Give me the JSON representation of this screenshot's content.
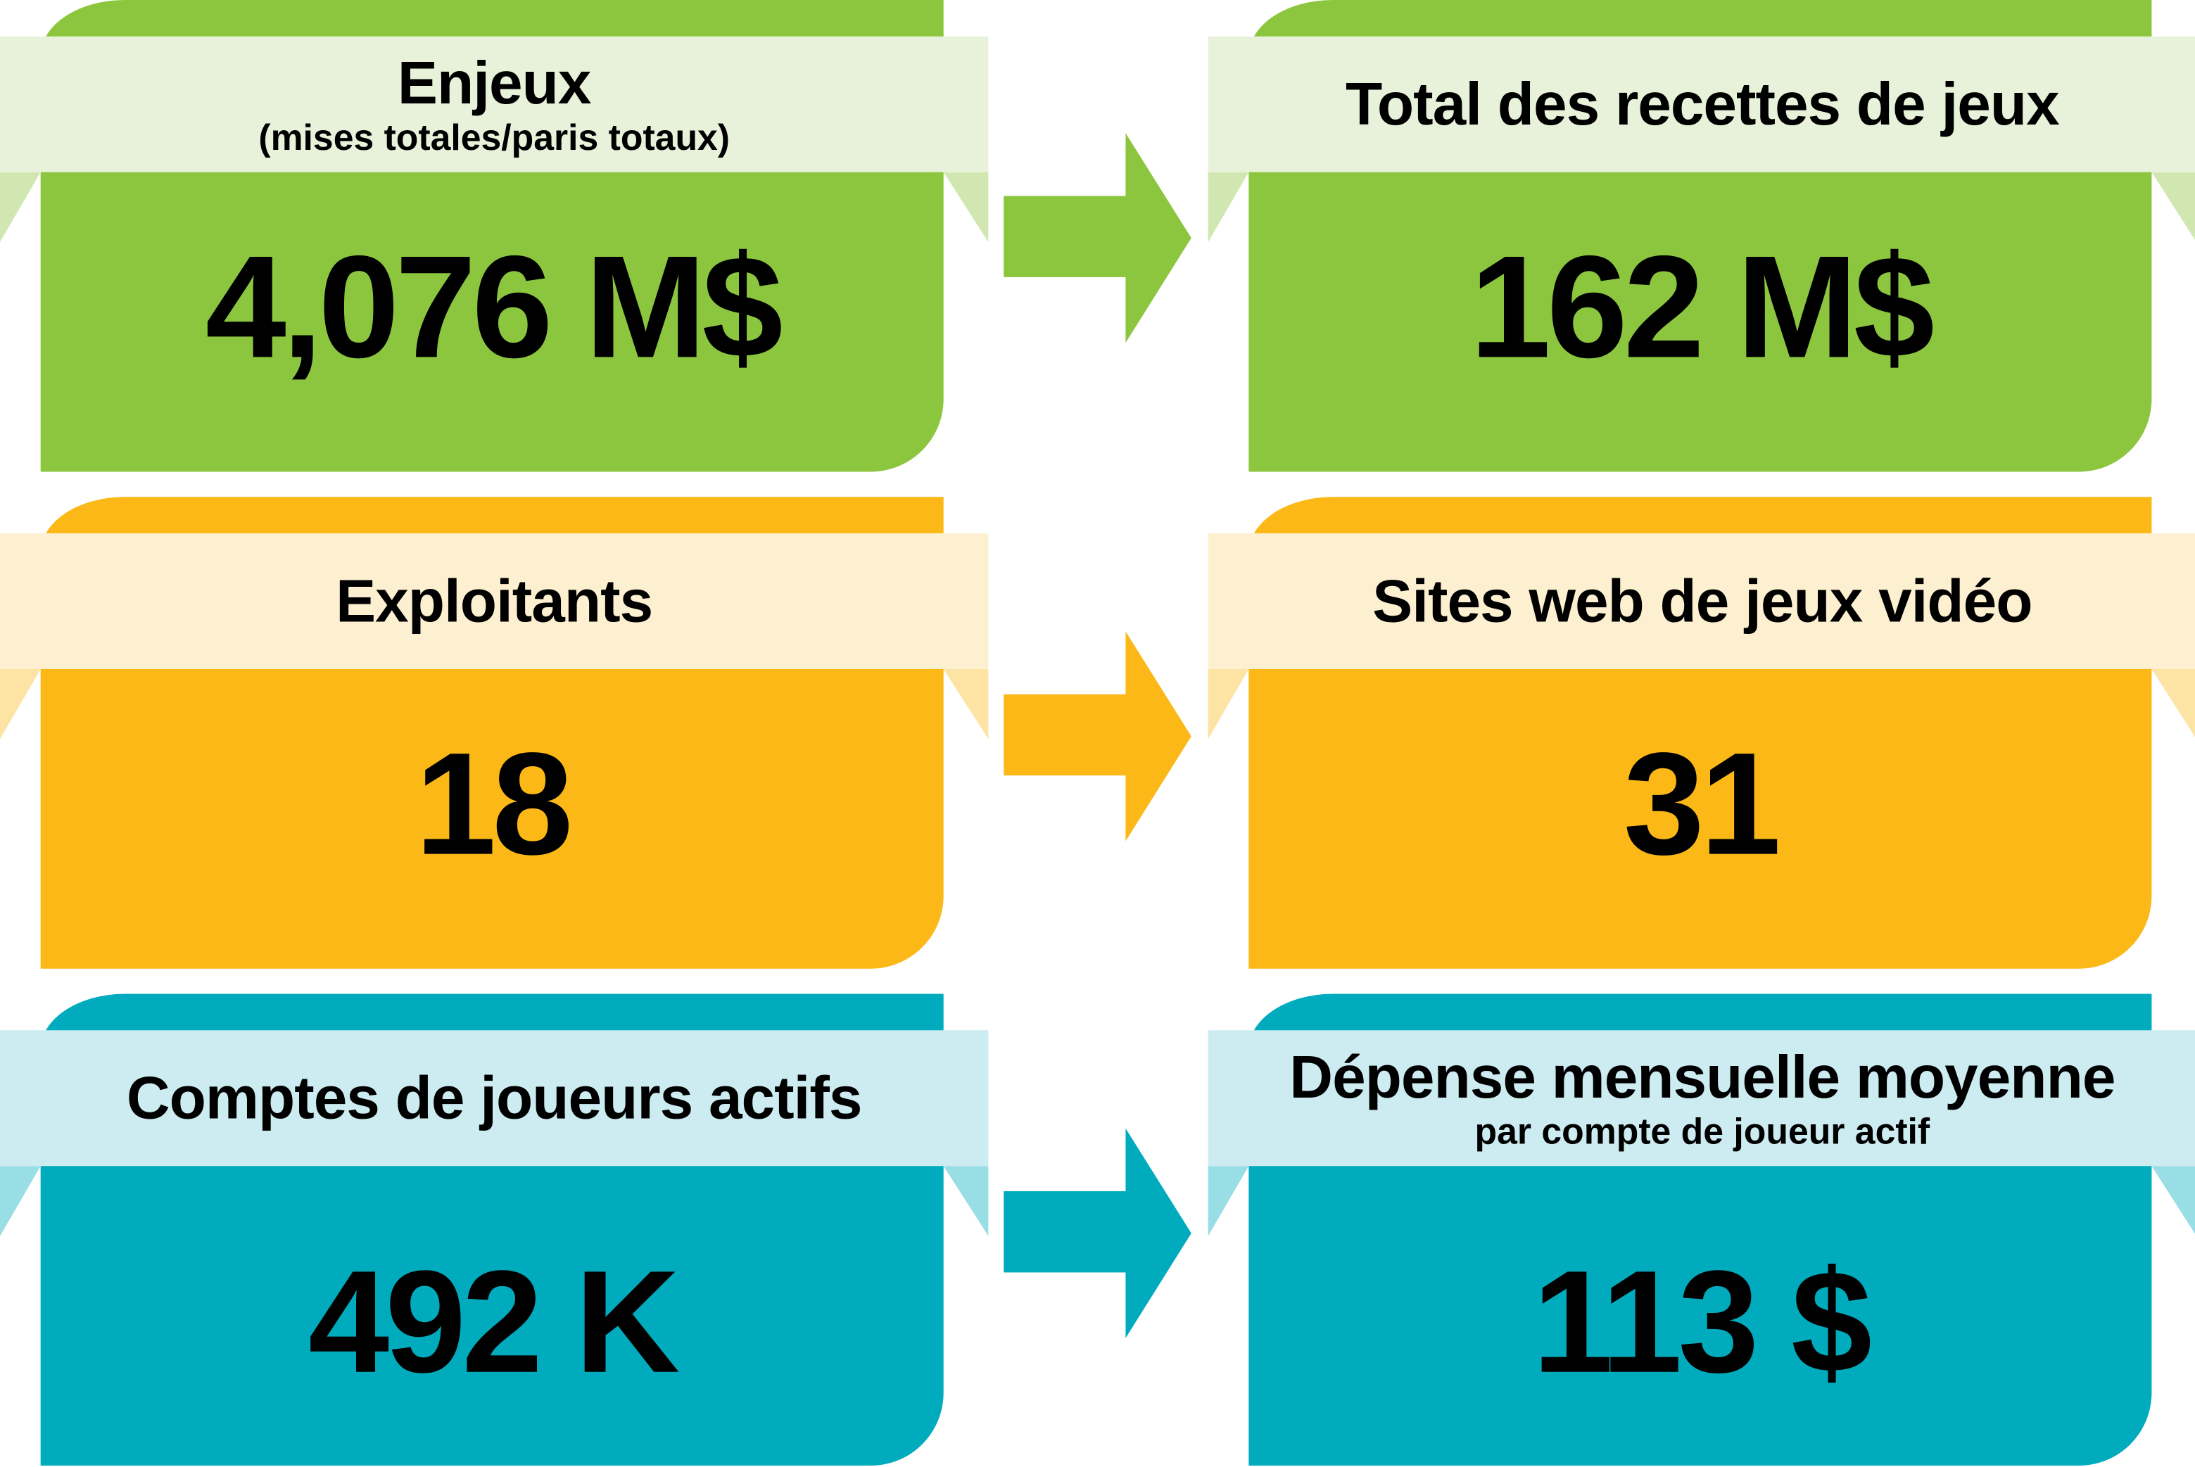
{
  "colors": {
    "green": "#8cc63f",
    "green_banner": "#e8f2da",
    "green_fold": "#d1e7b2",
    "orange": "#fbb817",
    "orange_banner": "#fdf0d0",
    "orange_fold": "#fde3a4",
    "teal": "#00abbd",
    "teal_banner": "#ccecf1",
    "teal_fold": "#99dde5"
  },
  "rows": [
    {
      "left": {
        "title": "Enjeux",
        "subtitle": "(mises totales/paris totaux)",
        "value": "4,076 M$"
      },
      "arrow_icon": "arrow-right-icon",
      "right": {
        "title": "Total des recettes de jeux",
        "value": "162 M$"
      }
    },
    {
      "left": {
        "title": "Exploitants",
        "value": "18"
      },
      "arrow_icon": "arrow-right-icon",
      "right": {
        "title": "Sites web de jeux vidéo",
        "value": "31"
      }
    },
    {
      "left": {
        "title": "Comptes de joueurs actifs",
        "value": "492 K"
      },
      "arrow_icon": "arrow-right-icon",
      "right": {
        "title": "Dépense mensuelle moyenne",
        "subtitle": "par compte de joueur actif",
        "value": "113 $"
      }
    }
  ]
}
